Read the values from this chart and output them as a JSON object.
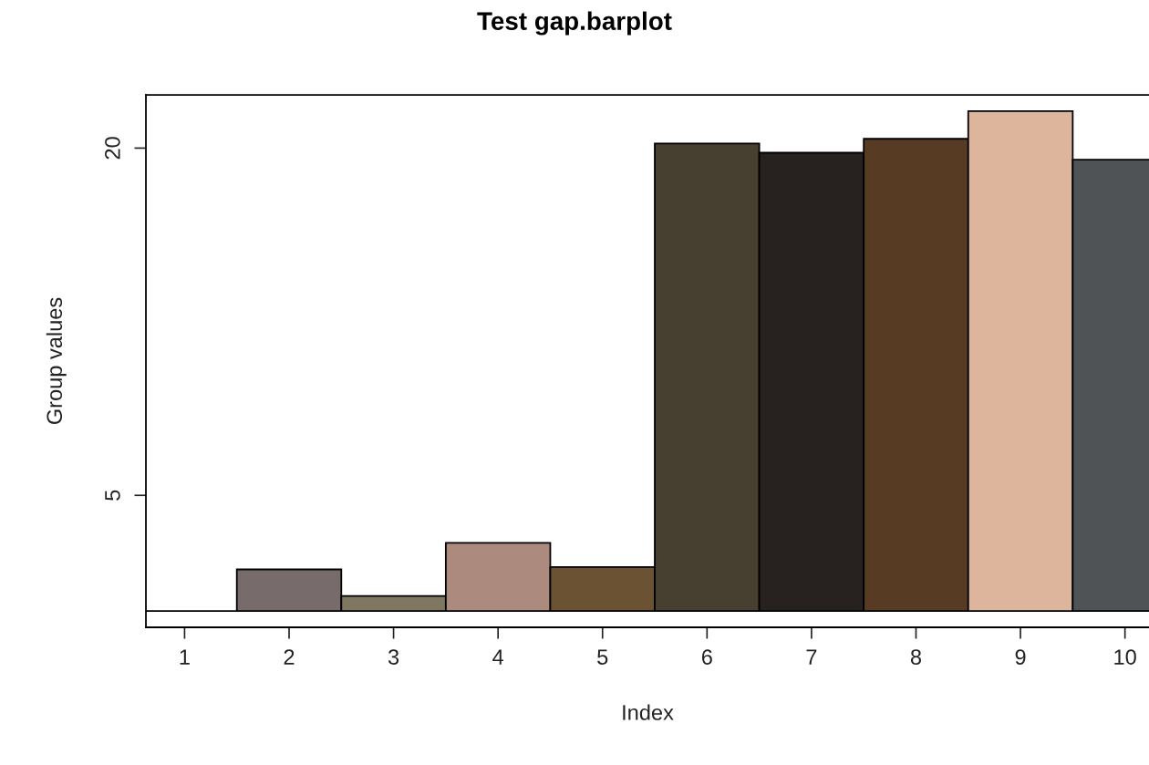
{
  "chart_data": {
    "type": "bar",
    "title": "Test gap.barplot",
    "xlabel": "Index",
    "ylabel": "Group values",
    "x": [
      1,
      2,
      3,
      4,
      5,
      6,
      7,
      8,
      9,
      10
    ],
    "values": [
      0,
      1.8,
      0.65,
      2.95,
      1.9,
      20.2,
      19.8,
      20.4,
      21.6,
      19.5
    ],
    "colors": [
      "#000000",
      "#776b6b",
      "#7f7760",
      "#ad8a7e",
      "#6a5233",
      "#473f30",
      "#27221f",
      "#573c23",
      "#dcb59c",
      "#4f5356"
    ],
    "xlim": [
      0.63,
      10.23
    ],
    "xticks": [
      1,
      2,
      3,
      4,
      5,
      6,
      7,
      8,
      9,
      10
    ],
    "ylim": [
      -0.7,
      22.3
    ],
    "yticks": [
      5,
      20
    ],
    "grid": false,
    "legend": false
  }
}
